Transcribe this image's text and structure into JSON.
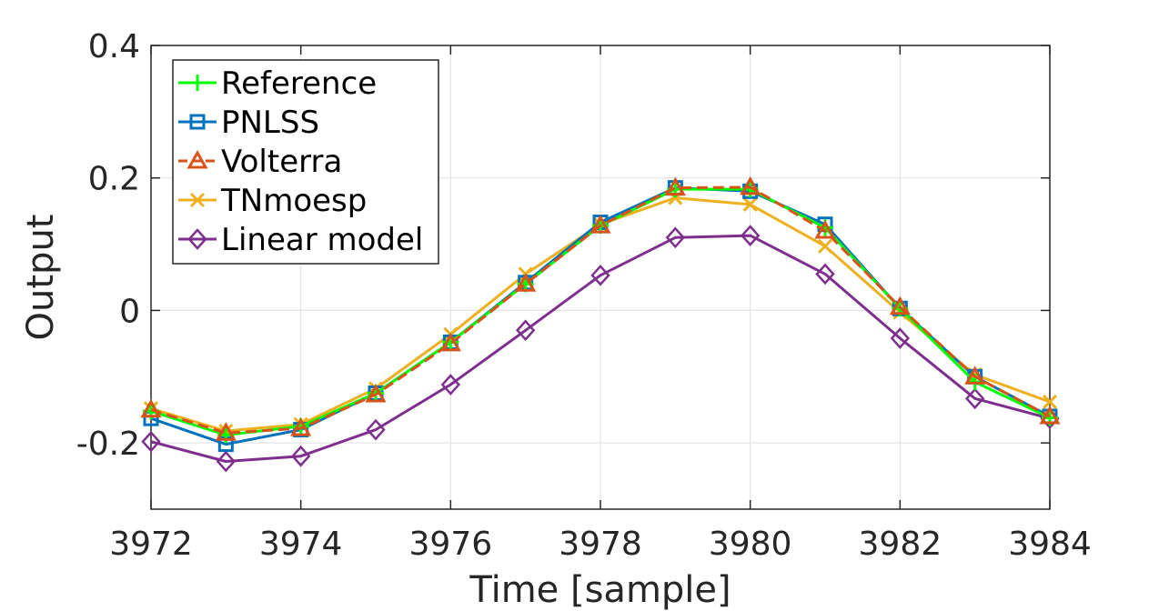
{
  "chart_data": {
    "type": "line",
    "title": "",
    "xlabel": "Time [sample]",
    "ylabel": "Output",
    "xlim": [
      3972,
      3984
    ],
    "ylim": [
      -0.3,
      0.4
    ],
    "xticks": [
      3972,
      3974,
      3976,
      3978,
      3980,
      3982,
      3984
    ],
    "xtick_labels": [
      "3972",
      "3974",
      "3976",
      "3978",
      "3980",
      "3982",
      "3984"
    ],
    "yticks": [
      -0.2,
      0,
      0.2,
      0.4
    ],
    "ytick_labels": [
      "-0.2",
      "0",
      "0.2",
      "0.4"
    ],
    "grid": true,
    "legend_position": "top-left",
    "x": [
      3972,
      3973,
      3974,
      3975,
      3976,
      3977,
      3978,
      3979,
      3980,
      3981,
      3982,
      3983,
      3984
    ],
    "series": [
      {
        "name": "Reference",
        "color": "#00ff00",
        "marker": "plus",
        "dashed": false,
        "values": [
          -0.152,
          -0.188,
          -0.175,
          -0.125,
          -0.048,
          0.04,
          0.128,
          0.183,
          0.183,
          0.125,
          0.003,
          -0.108,
          -0.162
        ]
      },
      {
        "name": "PNLSS",
        "color": "#0072bd",
        "marker": "square",
        "dashed": false,
        "values": [
          -0.163,
          -0.202,
          -0.18,
          -0.125,
          -0.048,
          0.042,
          0.133,
          0.185,
          0.18,
          0.13,
          0.003,
          -0.1,
          -0.16
        ]
      },
      {
        "name": "Volterra",
        "color": "#d95319",
        "marker": "triangle",
        "dashed": true,
        "values": [
          -0.15,
          -0.185,
          -0.178,
          -0.127,
          -0.05,
          0.04,
          0.128,
          0.185,
          0.186,
          0.12,
          0.005,
          -0.1,
          -0.16
        ]
      },
      {
        "name": "TNmoesp",
        "color": "#edb120",
        "marker": "x",
        "dashed": false,
        "values": [
          -0.148,
          -0.182,
          -0.172,
          -0.118,
          -0.036,
          0.055,
          0.13,
          0.17,
          0.16,
          0.097,
          -0.003,
          -0.097,
          -0.138
        ]
      },
      {
        "name": "Linear model",
        "color": "#7e2f8e",
        "marker": "diamond",
        "dashed": false,
        "values": [
          -0.198,
          -0.228,
          -0.22,
          -0.18,
          -0.112,
          -0.03,
          0.053,
          0.11,
          0.113,
          0.055,
          -0.042,
          -0.133,
          -0.163
        ]
      }
    ]
  }
}
